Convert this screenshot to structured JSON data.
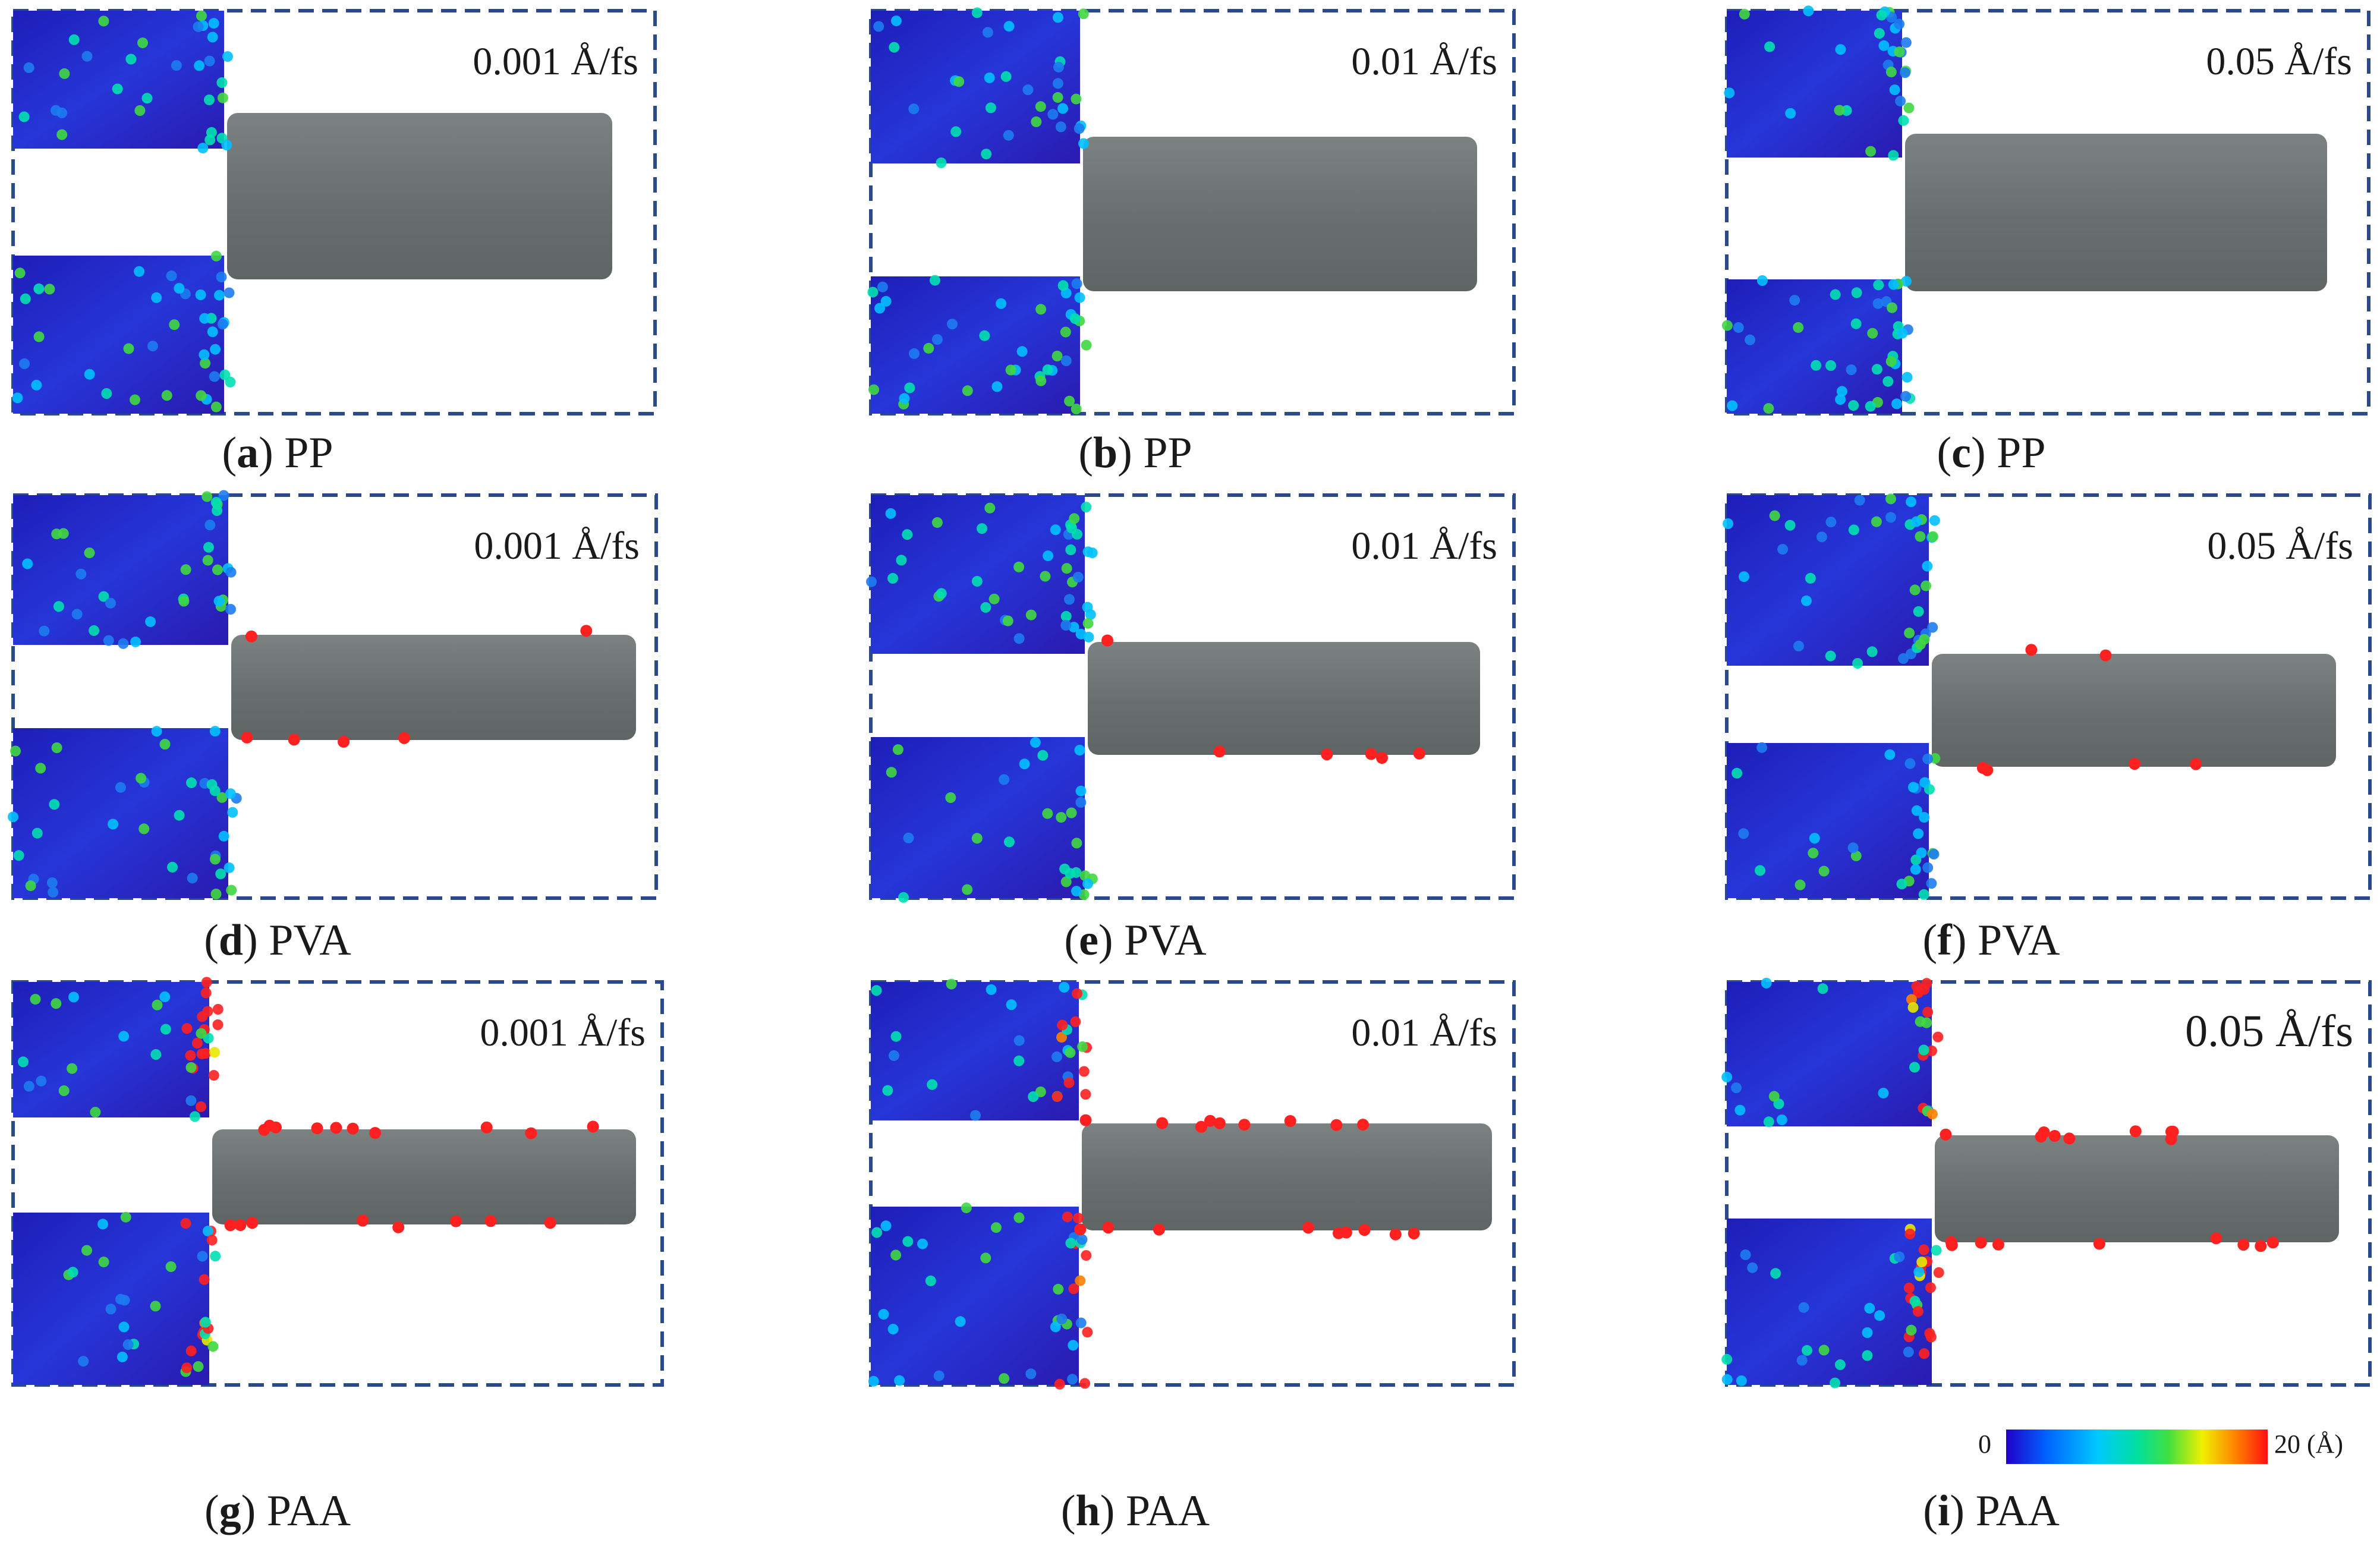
{
  "panels": [
    {
      "letter": "a",
      "material": "PP",
      "rate": "0.001 Å/fs"
    },
    {
      "letter": "b",
      "material": "PP",
      "rate": "0.01 Å/fs"
    },
    {
      "letter": "c",
      "material": "PP",
      "rate": "0.05 Å/fs"
    },
    {
      "letter": "d",
      "material": "PVA",
      "rate": "0.001 Å/fs"
    },
    {
      "letter": "e",
      "material": "PVA",
      "rate": "0.01 Å/fs"
    },
    {
      "letter": "f",
      "material": "PVA",
      "rate": "0.05 Å/fs"
    },
    {
      "letter": "g",
      "material": "PAA",
      "rate": "0.001 Å/fs"
    },
    {
      "letter": "h",
      "material": "PAA",
      "rate": "0.01 Å/fs"
    },
    {
      "letter": "i",
      "material": "PAA",
      "rate": "0.05 Å/fs"
    }
  ],
  "colorbar": {
    "min_label": "0",
    "max_label": "20 (Å)",
    "colors": [
      "#2000c8",
      "#0060ff",
      "#00c8ff",
      "#00e0a0",
      "#40e040",
      "#f0f000",
      "#ff8000",
      "#ff1010"
    ]
  },
  "colors": {
    "frame": "#2b4a8a",
    "nanowire": "#6f7575",
    "substrate_low": "#2a28c8",
    "substrate_mid": "#1d7cf0",
    "substrate_high": "#ff2020"
  }
}
